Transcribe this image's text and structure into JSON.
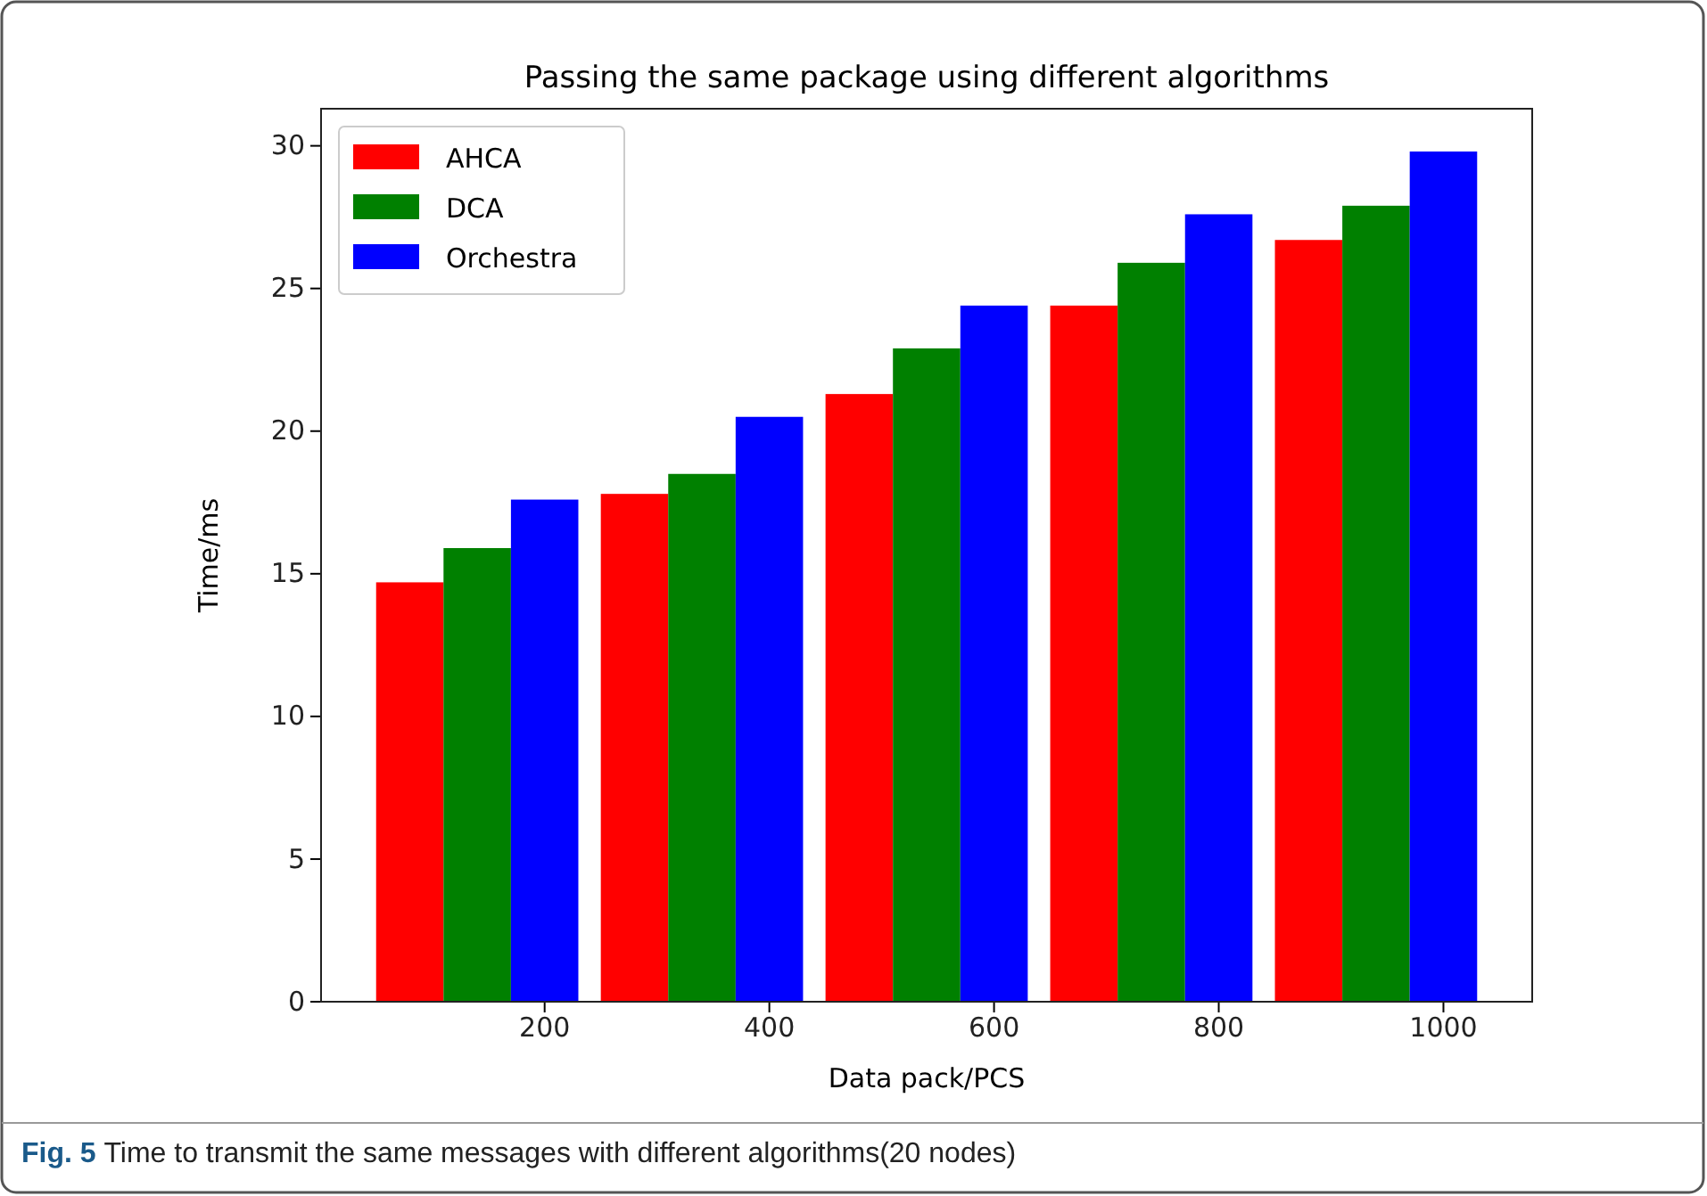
{
  "chart_data": {
    "type": "bar",
    "title": "Passing the same package using different algorithms",
    "xlabel": "Data pack/PCS",
    "ylabel": "Time/ms",
    "annotations": [
      "Fig. 5 Time to transmit the same messages with different algorithms(20 nodes)"
    ],
    "series": [
      {
        "name": "AHCA",
        "color": "#ff0000",
        "x": [
          80,
          280,
          480,
          680,
          880
        ],
        "values": [
          14.7,
          17.8,
          21.3,
          24.4,
          26.7
        ]
      },
      {
        "name": "DCA",
        "color": "#008000",
        "x": [
          140,
          340,
          540,
          740,
          940
        ],
        "values": [
          15.9,
          18.5,
          22.9,
          25.9,
          27.9
        ]
      },
      {
        "name": "Orchestra",
        "color": "#0000ff",
        "x": [
          200,
          400,
          600,
          800,
          1000
        ],
        "values": [
          17.6,
          20.5,
          24.4,
          27.6,
          29.8
        ]
      }
    ],
    "xlim": [
      1,
      1079
    ],
    "xticks": [
      200,
      400,
      600,
      800,
      1000
    ],
    "ylim": [
      0,
      31.3
    ],
    "yticks": [
      0,
      5,
      10,
      15,
      20,
      25,
      30
    ],
    "grid": false,
    "legend": "top left"
  }
}
